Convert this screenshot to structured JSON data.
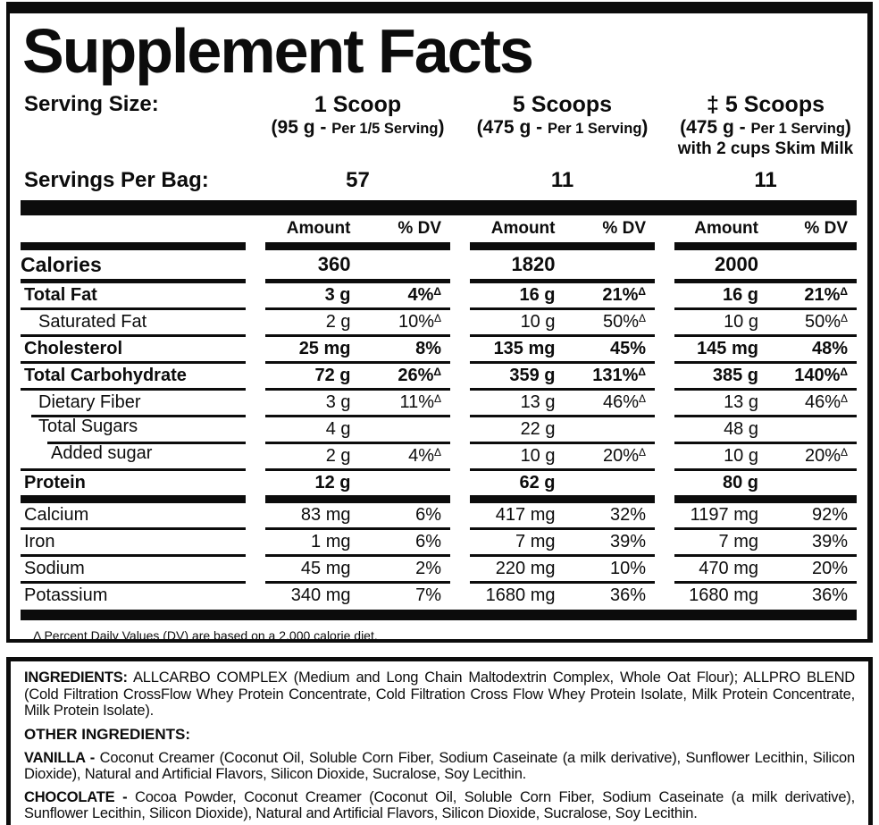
{
  "colors": {
    "ink": "#0c0c0c",
    "paper": "#ffffff"
  },
  "title": "Supplement Facts",
  "serving": {
    "size_label": "Serving Size:",
    "per_bag_label": "Servings Per Bag:",
    "columns": [
      {
        "scoop": "1 Scoop",
        "weight": "(95 g -",
        "per_serving": "Per 1/5 Serving",
        "close_paren": ")",
        "extra": "",
        "servings": "57"
      },
      {
        "scoop": "5 Scoops",
        "weight": "(475 g -",
        "per_serving": "Per 1 Serving",
        "close_paren": ")",
        "extra": "",
        "servings": "11"
      },
      {
        "scoop": "‡ 5 Scoops",
        "weight": "(475 g -",
        "per_serving": "Per 1 Serving",
        "close_paren": ")",
        "extra": "with 2 cups Skim Milk",
        "servings": "11"
      }
    ]
  },
  "table": {
    "amount_header": "Amount",
    "dv_header": "% DV",
    "rows": [
      {
        "label": "Calories",
        "bold": true,
        "indent": 0,
        "cols": [
          {
            "amount": "360",
            "dv": "",
            "sup": ""
          },
          {
            "amount": "1820",
            "dv": "",
            "sup": ""
          },
          {
            "amount": "2000",
            "dv": "",
            "sup": ""
          }
        ]
      },
      {
        "label": "Total Fat",
        "bold": true,
        "indent": 0,
        "cols": [
          {
            "amount": "3 g",
            "dv": "4%",
            "sup": "Δ"
          },
          {
            "amount": "16 g",
            "dv": "21%",
            "sup": "Δ"
          },
          {
            "amount": "16 g",
            "dv": "21%",
            "sup": "Δ"
          }
        ]
      },
      {
        "label": "Saturated Fat",
        "bold": false,
        "indent": 1,
        "cols": [
          {
            "amount": "2 g",
            "dv": "10%",
            "sup": "Δ"
          },
          {
            "amount": "10 g",
            "dv": "50%",
            "sup": "Δ"
          },
          {
            "amount": "10 g",
            "dv": "50%",
            "sup": "Δ"
          }
        ]
      },
      {
        "label": "Cholesterol",
        "bold": true,
        "indent": 0,
        "cols": [
          {
            "amount": "25 mg",
            "dv": "8%",
            "sup": ""
          },
          {
            "amount": "135 mg",
            "dv": "45%",
            "sup": ""
          },
          {
            "amount": "145 mg",
            "dv": "48%",
            "sup": ""
          }
        ]
      },
      {
        "label": "Total Carbohydrate",
        "bold": true,
        "indent": 0,
        "cols": [
          {
            "amount": "72 g",
            "dv": "26%",
            "sup": "Δ"
          },
          {
            "amount": "359 g",
            "dv": "131%",
            "sup": "Δ"
          },
          {
            "amount": "385 g",
            "dv": "140%",
            "sup": "Δ"
          }
        ]
      },
      {
        "label": "Dietary Fiber",
        "bold": false,
        "indent": 1,
        "cols": [
          {
            "amount": "3 g",
            "dv": "11%",
            "sup": "Δ"
          },
          {
            "amount": "13 g",
            "dv": "46%",
            "sup": "Δ"
          },
          {
            "amount": "13 g",
            "dv": "46%",
            "sup": "Δ"
          }
        ]
      },
      {
        "label": "Total Sugars",
        "bold": false,
        "indent": 1,
        "cols": [
          {
            "amount": "4 g",
            "dv": "",
            "sup": ""
          },
          {
            "amount": "22 g",
            "dv": "",
            "sup": ""
          },
          {
            "amount": "48 g",
            "dv": "",
            "sup": ""
          }
        ]
      },
      {
        "label": "Added sugar",
        "bold": false,
        "indent": 2,
        "cols": [
          {
            "amount": "2 g",
            "dv": "4%",
            "sup": "Δ"
          },
          {
            "amount": "10 g",
            "dv": "20%",
            "sup": "Δ"
          },
          {
            "amount": "10 g",
            "dv": "20%",
            "sup": "Δ"
          }
        ]
      },
      {
        "label": "Protein",
        "bold": true,
        "indent": 0,
        "cols": [
          {
            "amount": "12 g",
            "dv": "",
            "sup": ""
          },
          {
            "amount": "62 g",
            "dv": "",
            "sup": ""
          },
          {
            "amount": "80 g",
            "dv": "",
            "sup": ""
          }
        ]
      },
      {
        "label": "Calcium",
        "bold": false,
        "indent": 0,
        "cols": [
          {
            "amount": "83 mg",
            "dv": "6%",
            "sup": ""
          },
          {
            "amount": "417 mg",
            "dv": "32%",
            "sup": ""
          },
          {
            "amount": "1197 mg",
            "dv": "92%",
            "sup": ""
          }
        ]
      },
      {
        "label": "Iron",
        "bold": false,
        "indent": 0,
        "cols": [
          {
            "amount": "1 mg",
            "dv": "6%",
            "sup": ""
          },
          {
            "amount": "7 mg",
            "dv": "39%",
            "sup": ""
          },
          {
            "amount": "7 mg",
            "dv": "39%",
            "sup": ""
          }
        ]
      },
      {
        "label": "Sodium",
        "bold": false,
        "indent": 0,
        "cols": [
          {
            "amount": "45 mg",
            "dv": "2%",
            "sup": ""
          },
          {
            "amount": "220 mg",
            "dv": "10%",
            "sup": ""
          },
          {
            "amount": "470 mg",
            "dv": "20%",
            "sup": ""
          }
        ]
      },
      {
        "label": "Potassium",
        "bold": false,
        "indent": 0,
        "cols": [
          {
            "amount": "340 mg",
            "dv": "7%",
            "sup": ""
          },
          {
            "amount": "1680 mg",
            "dv": "36%",
            "sup": ""
          },
          {
            "amount": "1680 mg",
            "dv": "36%",
            "sup": ""
          }
        ]
      }
    ],
    "footnote": "Δ Percent Daily Values (DV) are based on a 2,000 calorie diet."
  },
  "ingredients": {
    "main_label": "INGREDIENTS:",
    "main_text": " ALLCARBO COMPLEX (Medium and Long Chain Maltodextrin Complex, Whole Oat Flour); ALLPRO BLEND (Cold Filtration CrossFlow Whey Protein Concentrate, Cold Filtration Cross Flow Whey Protein Isolate, Milk Protein Concentrate, Milk Protein Isolate).",
    "other_label": "OTHER INGREDIENTS:",
    "flavors": [
      {
        "name": "VANILLA -",
        "text": " Coconut Creamer (Coconut Oil, Soluble Corn Fiber, Sodium Caseinate (a milk derivative), Sunflower Lecithin, Silicon Dioxide), Natural and Artificial Flavors, Silicon Dioxide, Sucralose, Soy Lecithin."
      },
      {
        "name": "CHOCOLATE -",
        "text": " Cocoa Powder, Coconut Creamer (Coconut Oil, Soluble Corn Fiber, Sodium Caseinate (a milk derivative), Sunflower Lecithin, Silicon Dioxide), Natural and Artificial Flavors, Silicon Dioxide, Sucralose, Soy Lecithin."
      }
    ]
  }
}
